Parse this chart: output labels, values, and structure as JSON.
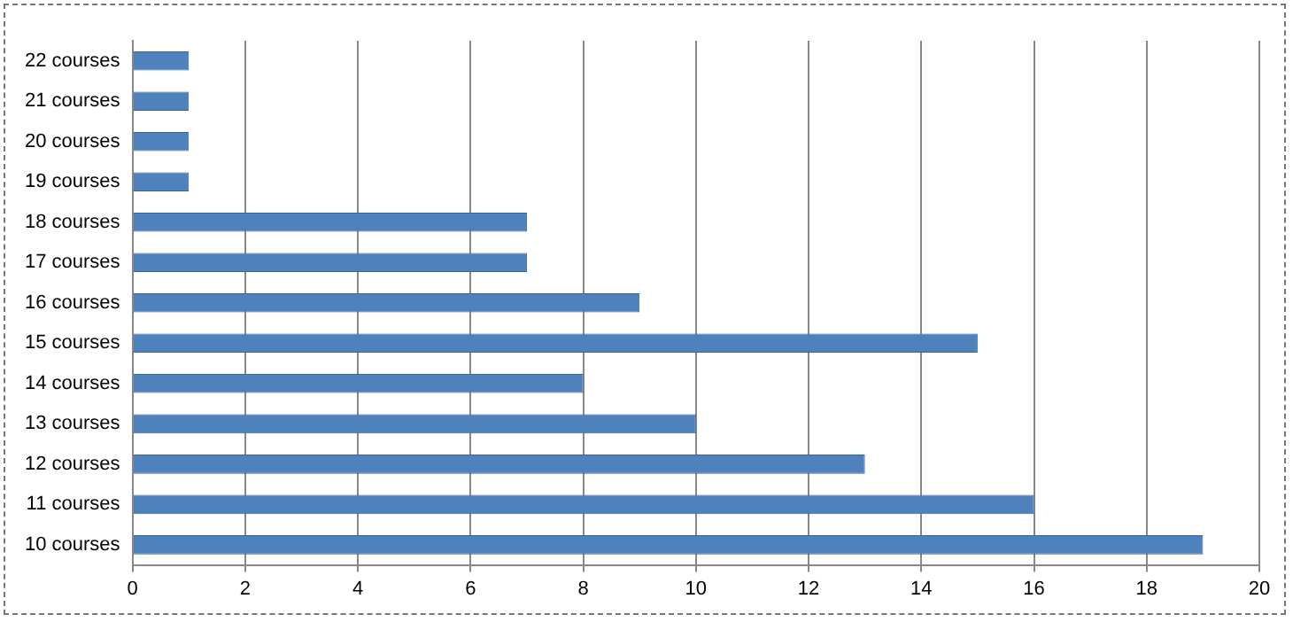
{
  "chart_data": {
    "type": "bar",
    "orientation": "horizontal",
    "categories": [
      "22 courses",
      "21 courses",
      "20 courses",
      "19 courses",
      "18 courses",
      "17 courses",
      "16 courses",
      "15 courses",
      "14 courses",
      "13 courses",
      "12 courses",
      "11 courses",
      "10 courses"
    ],
    "values": [
      1,
      1,
      1,
      1,
      7,
      7,
      9,
      15,
      8,
      10,
      13,
      16,
      19
    ],
    "color": "#4f81bd",
    "xlim": [
      0,
      20
    ],
    "xticks": [
      0,
      2,
      4,
      6,
      8,
      10,
      12,
      14,
      16,
      18,
      20
    ],
    "grid": "x",
    "legend": false
  }
}
